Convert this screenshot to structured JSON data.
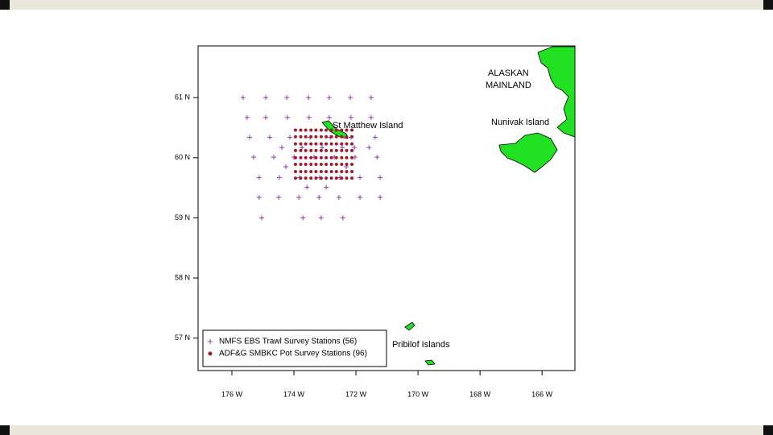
{
  "chart_data": {
    "type": "scatter",
    "xlim": [
      -177.09,
      -164.94
    ],
    "ylim": [
      56.46,
      61.86
    ],
    "xticks": [
      {
        "value": -176,
        "label": "176 W"
      },
      {
        "value": -174,
        "label": "174 W"
      },
      {
        "value": -172,
        "label": "172 W"
      },
      {
        "value": -170,
        "label": "170 W"
      },
      {
        "value": -168,
        "label": "168 W"
      },
      {
        "value": -166,
        "label": "166 W"
      }
    ],
    "yticks": [
      {
        "value": 57,
        "label": "57 N"
      },
      {
        "value": 58,
        "label": "58 N"
      },
      {
        "value": 59,
        "label": "59 N"
      },
      {
        "value": 60,
        "label": "60 N"
      },
      {
        "value": 61,
        "label": "61 N"
      }
    ],
    "legend": "bottom-left",
    "annotations": [
      "ALASKAN",
      "MAINLAND",
      "Nunivak Island",
      "St Matthew Island",
      "Pribilof Islands"
    ],
    "series": [
      {
        "name": "NMFS EBS Trawl Survey Stations (56)",
        "color": "#8e3fa8",
        "marker": "plus",
        "x": [
          -175.64,
          -174.91,
          -174.23,
          -173.53,
          -172.86,
          -172.18,
          -171.51,
          -175.51,
          -174.91,
          -174.21,
          -173.51,
          -172.86,
          -172.16,
          -171.51,
          -175.43,
          -174.78,
          -174.13,
          -173.48,
          -172.83,
          -172.16,
          -171.38,
          -174.39,
          -173.74,
          -173.09,
          -172.44,
          -172.05,
          -171.58,
          -175.3,
          -174.65,
          -174.0,
          -173.35,
          -172.7,
          -172.03,
          -171.32,
          -174.26,
          -172.31,
          -175.12,
          -174.47,
          -173.82,
          -173.17,
          -172.52,
          -171.87,
          -171.22,
          -173.58,
          -172.96,
          -175.12,
          -174.49,
          -173.84,
          -173.19,
          -172.55,
          -171.87,
          -171.22,
          -175.04,
          -173.71,
          -173.12,
          -172.42
        ],
        "values": [
          61.0,
          61.0,
          61.0,
          61.0,
          61.0,
          61.0,
          61.0,
          60.67,
          60.67,
          60.67,
          60.67,
          60.67,
          60.67,
          60.67,
          60.34,
          60.34,
          60.34,
          60.34,
          60.34,
          60.34,
          60.34,
          60.17,
          60.17,
          60.17,
          60.17,
          60.17,
          60.17,
          60.01,
          60.01,
          60.01,
          60.01,
          60.01,
          60.01,
          60.01,
          59.85,
          59.85,
          59.67,
          59.67,
          59.67,
          59.67,
          59.67,
          59.67,
          59.67,
          59.51,
          59.51,
          59.34,
          59.34,
          59.34,
          59.34,
          59.34,
          59.34,
          59.34,
          59.0,
          59.0,
          59.0,
          59.0
        ]
      },
      {
        "name": "ADF&G SMBKC Pot Survey Stations (96)",
        "color": "#a01c2a",
        "marker": "dot",
        "x": [
          -173.95,
          -173.78,
          -173.62,
          -173.45,
          -173.29,
          -173.12,
          -172.96,
          -172.79,
          -172.63,
          -172.46,
          -172.3,
          -172.13,
          -173.95,
          -173.78,
          -173.62,
          -173.45,
          -173.29,
          -173.12,
          -172.96,
          -172.79,
          -172.63,
          -172.46,
          -172.3,
          -172.13,
          -173.95,
          -173.78,
          -173.62,
          -173.45,
          -173.29,
          -173.12,
          -172.96,
          -172.79,
          -172.63,
          -172.46,
          -172.3,
          -172.13,
          -173.95,
          -173.78,
          -173.62,
          -173.45,
          -173.29,
          -173.12,
          -172.96,
          -172.79,
          -172.63,
          -172.46,
          -172.3,
          -172.13,
          -173.95,
          -173.78,
          -173.62,
          -173.45,
          -173.29,
          -173.12,
          -172.96,
          -172.79,
          -172.63,
          -172.46,
          -172.3,
          -172.13,
          -173.95,
          -173.78,
          -173.62,
          -173.45,
          -173.29,
          -173.12,
          -172.96,
          -172.79,
          -172.63,
          -172.46,
          -172.3,
          -172.13,
          -173.95,
          -173.78,
          -173.62,
          -173.45,
          -173.29,
          -173.12,
          -172.96,
          -172.79,
          -172.63,
          -172.46,
          -172.3,
          -172.13,
          -173.95,
          -173.78,
          -173.62,
          -173.45,
          -173.29,
          -173.12,
          -172.96,
          -172.79,
          -172.63,
          -172.46,
          -172.3,
          -172.13
        ],
        "values": [
          60.46,
          60.46,
          60.46,
          60.46,
          60.46,
          60.46,
          60.46,
          60.46,
          60.46,
          60.46,
          60.46,
          60.46,
          60.35,
          60.35,
          60.35,
          60.35,
          60.35,
          60.35,
          60.35,
          60.35,
          60.35,
          60.35,
          60.35,
          60.35,
          60.23,
          60.23,
          60.23,
          60.23,
          60.23,
          60.23,
          60.23,
          60.23,
          60.23,
          60.23,
          60.23,
          60.23,
          60.12,
          60.12,
          60.12,
          60.12,
          60.12,
          60.12,
          60.12,
          60.12,
          60.12,
          60.12,
          60.12,
          60.12,
          60.0,
          60.0,
          60.0,
          60.0,
          60.0,
          60.0,
          60.0,
          60.0,
          60.0,
          60.0,
          60.0,
          60.0,
          59.89,
          59.89,
          59.89,
          59.89,
          59.89,
          59.89,
          59.89,
          59.89,
          59.89,
          59.89,
          59.89,
          59.89,
          59.77,
          59.77,
          59.77,
          59.77,
          59.77,
          59.77,
          59.77,
          59.77,
          59.77,
          59.77,
          59.77,
          59.77,
          59.66,
          59.66,
          59.66,
          59.66,
          59.66,
          59.66,
          59.66,
          59.66,
          59.66,
          59.66,
          59.66,
          59.66
        ]
      }
    ]
  }
}
